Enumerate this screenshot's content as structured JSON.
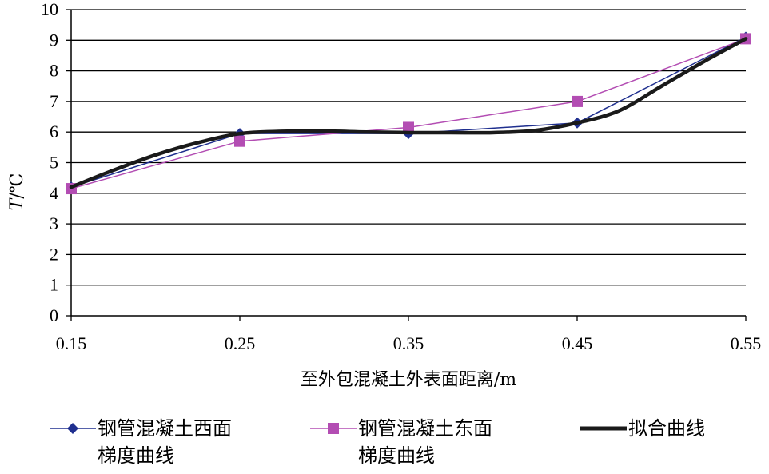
{
  "chart_data": {
    "type": "line",
    "xlabel": "至外包混凝土外表面距离/m",
    "ylabel_italic": "T",
    "ylabel_unit": "/℃",
    "x_ticks": [
      "0.15",
      "0.25",
      "0.35",
      "0.45",
      "0.55"
    ],
    "y_ticks": [
      "0",
      "1",
      "2",
      "3",
      "4",
      "5",
      "6",
      "7",
      "8",
      "9",
      "10"
    ],
    "xlim": [
      0.15,
      0.55
    ],
    "ylim": [
      0,
      10
    ],
    "grid": "horizontal",
    "legend_position": "bottom",
    "series": [
      {
        "name": "钢管混凝土西面梯度曲线",
        "name_line1": "钢管混凝土西面",
        "name_line2": "梯度曲线",
        "color": "#1f2f8f",
        "marker": "diamond",
        "x": [
          0.15,
          0.25,
          0.35,
          0.45,
          0.55
        ],
        "y": [
          4.2,
          5.95,
          5.95,
          6.3,
          9.1
        ]
      },
      {
        "name": "钢管混凝土东面梯度曲线",
        "name_line1": "钢管混凝土东面",
        "name_line2": "梯度曲线",
        "color": "#b34db3",
        "marker": "square",
        "x": [
          0.15,
          0.25,
          0.35,
          0.45,
          0.55
        ],
        "y": [
          4.15,
          5.7,
          6.15,
          7.0,
          9.05
        ]
      },
      {
        "name": "拟合曲线",
        "color": "#1a1a1a",
        "marker": "none",
        "x": [
          0.15,
          0.175,
          0.2,
          0.225,
          0.25,
          0.275,
          0.3,
          0.325,
          0.35,
          0.375,
          0.4,
          0.425,
          0.45,
          0.475,
          0.5,
          0.525,
          0.55
        ],
        "y": [
          4.2,
          4.75,
          5.25,
          5.65,
          5.95,
          6.02,
          6.03,
          6.0,
          5.98,
          5.98,
          5.98,
          6.05,
          6.3,
          6.7,
          7.5,
          8.3,
          9.05
        ]
      }
    ]
  }
}
